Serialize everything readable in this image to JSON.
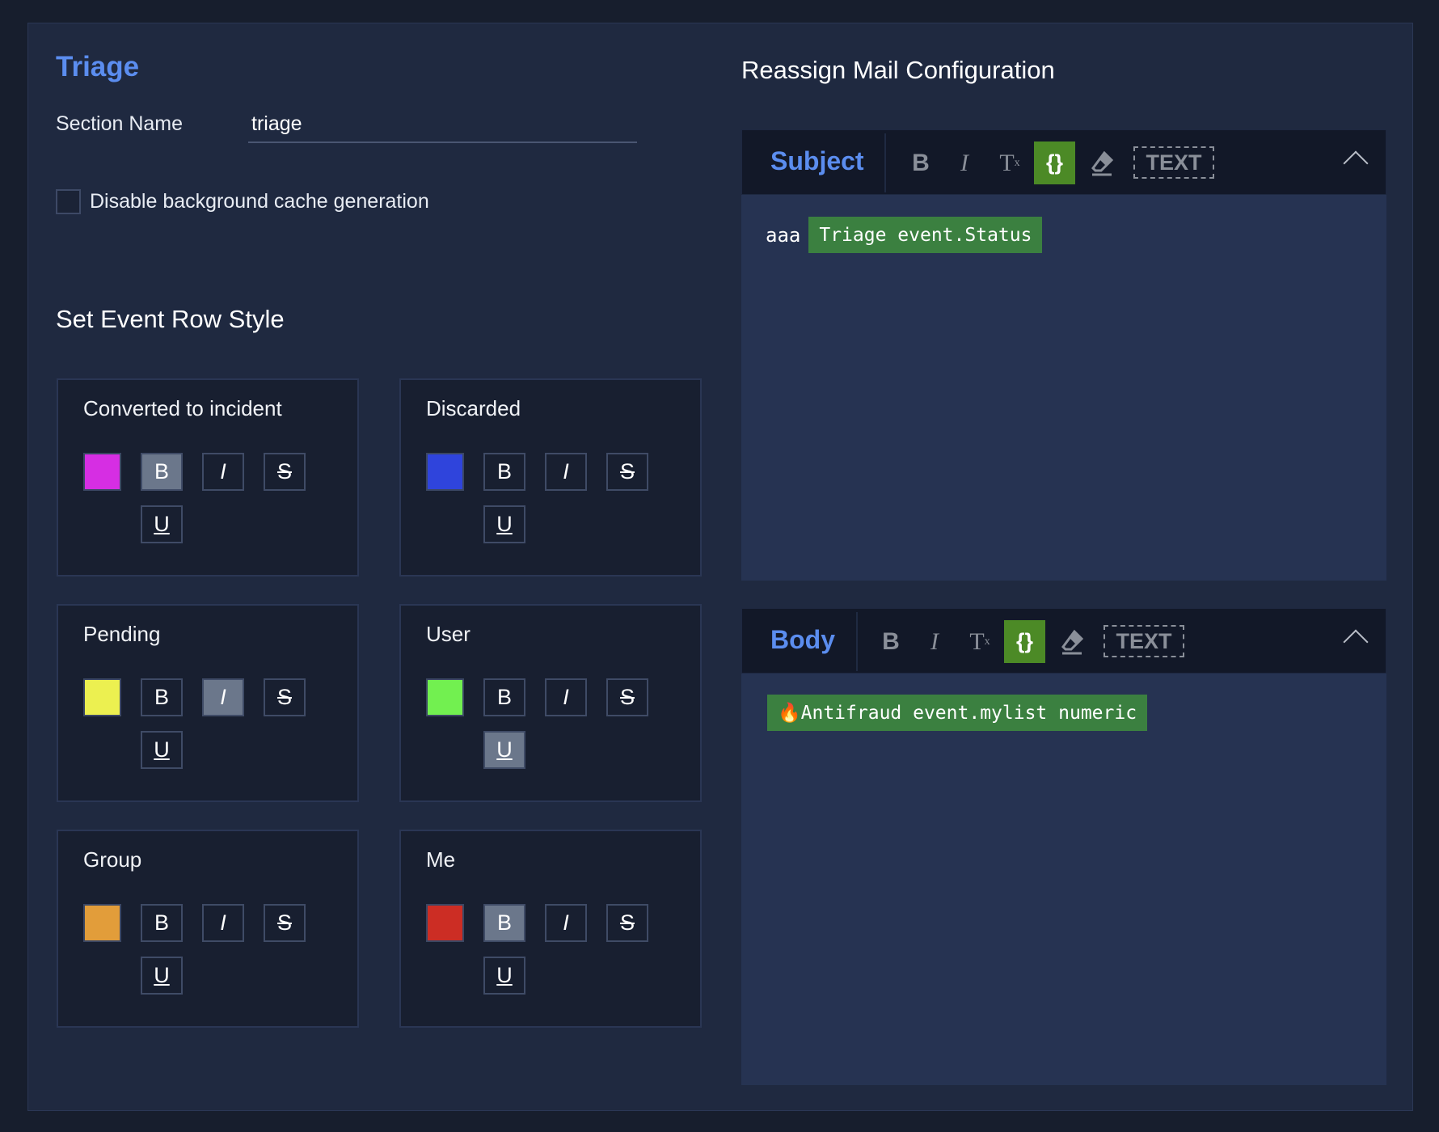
{
  "triage": {
    "title": "Triage",
    "section_name_label": "Section Name",
    "section_name_value": "triage",
    "disable_cache_label": "Disable background cache generation",
    "disable_cache_checked": false
  },
  "row_style": {
    "heading": "Set Event Row Style",
    "cards": [
      {
        "label": "Converted to incident",
        "color": "#d62ee3",
        "bold": true,
        "italic": false,
        "strike": false,
        "underline": false
      },
      {
        "label": "Discarded",
        "color": "#2f44dc",
        "bold": false,
        "italic": false,
        "strike": false,
        "underline": false
      },
      {
        "label": "Pending",
        "color": "#ecf050",
        "bold": false,
        "italic": true,
        "strike": false,
        "underline": false
      },
      {
        "label": "User",
        "color": "#72f050",
        "bold": false,
        "italic": false,
        "strike": false,
        "underline": true
      },
      {
        "label": "Group",
        "color": "#e29d3a",
        "bold": false,
        "italic": false,
        "strike": false,
        "underline": false
      },
      {
        "label": "Me",
        "color": "#cc2d24",
        "bold": true,
        "italic": false,
        "strike": false,
        "underline": false
      }
    ],
    "buttons": {
      "bold": "B",
      "italic": "I",
      "strike": "S",
      "underline": "U"
    }
  },
  "mail": {
    "heading": "Reassign Mail Configuration",
    "toolbar": {
      "bold": "B",
      "italic": "I",
      "clear": "T",
      "variable": "{}",
      "text": "TEXT"
    },
    "subject": {
      "label": "Subject",
      "text": "aaa",
      "chip": "Triage event.Status"
    },
    "body": {
      "label": "Body",
      "chip": "🔥Antifraud event.mylist numeric"
    }
  }
}
